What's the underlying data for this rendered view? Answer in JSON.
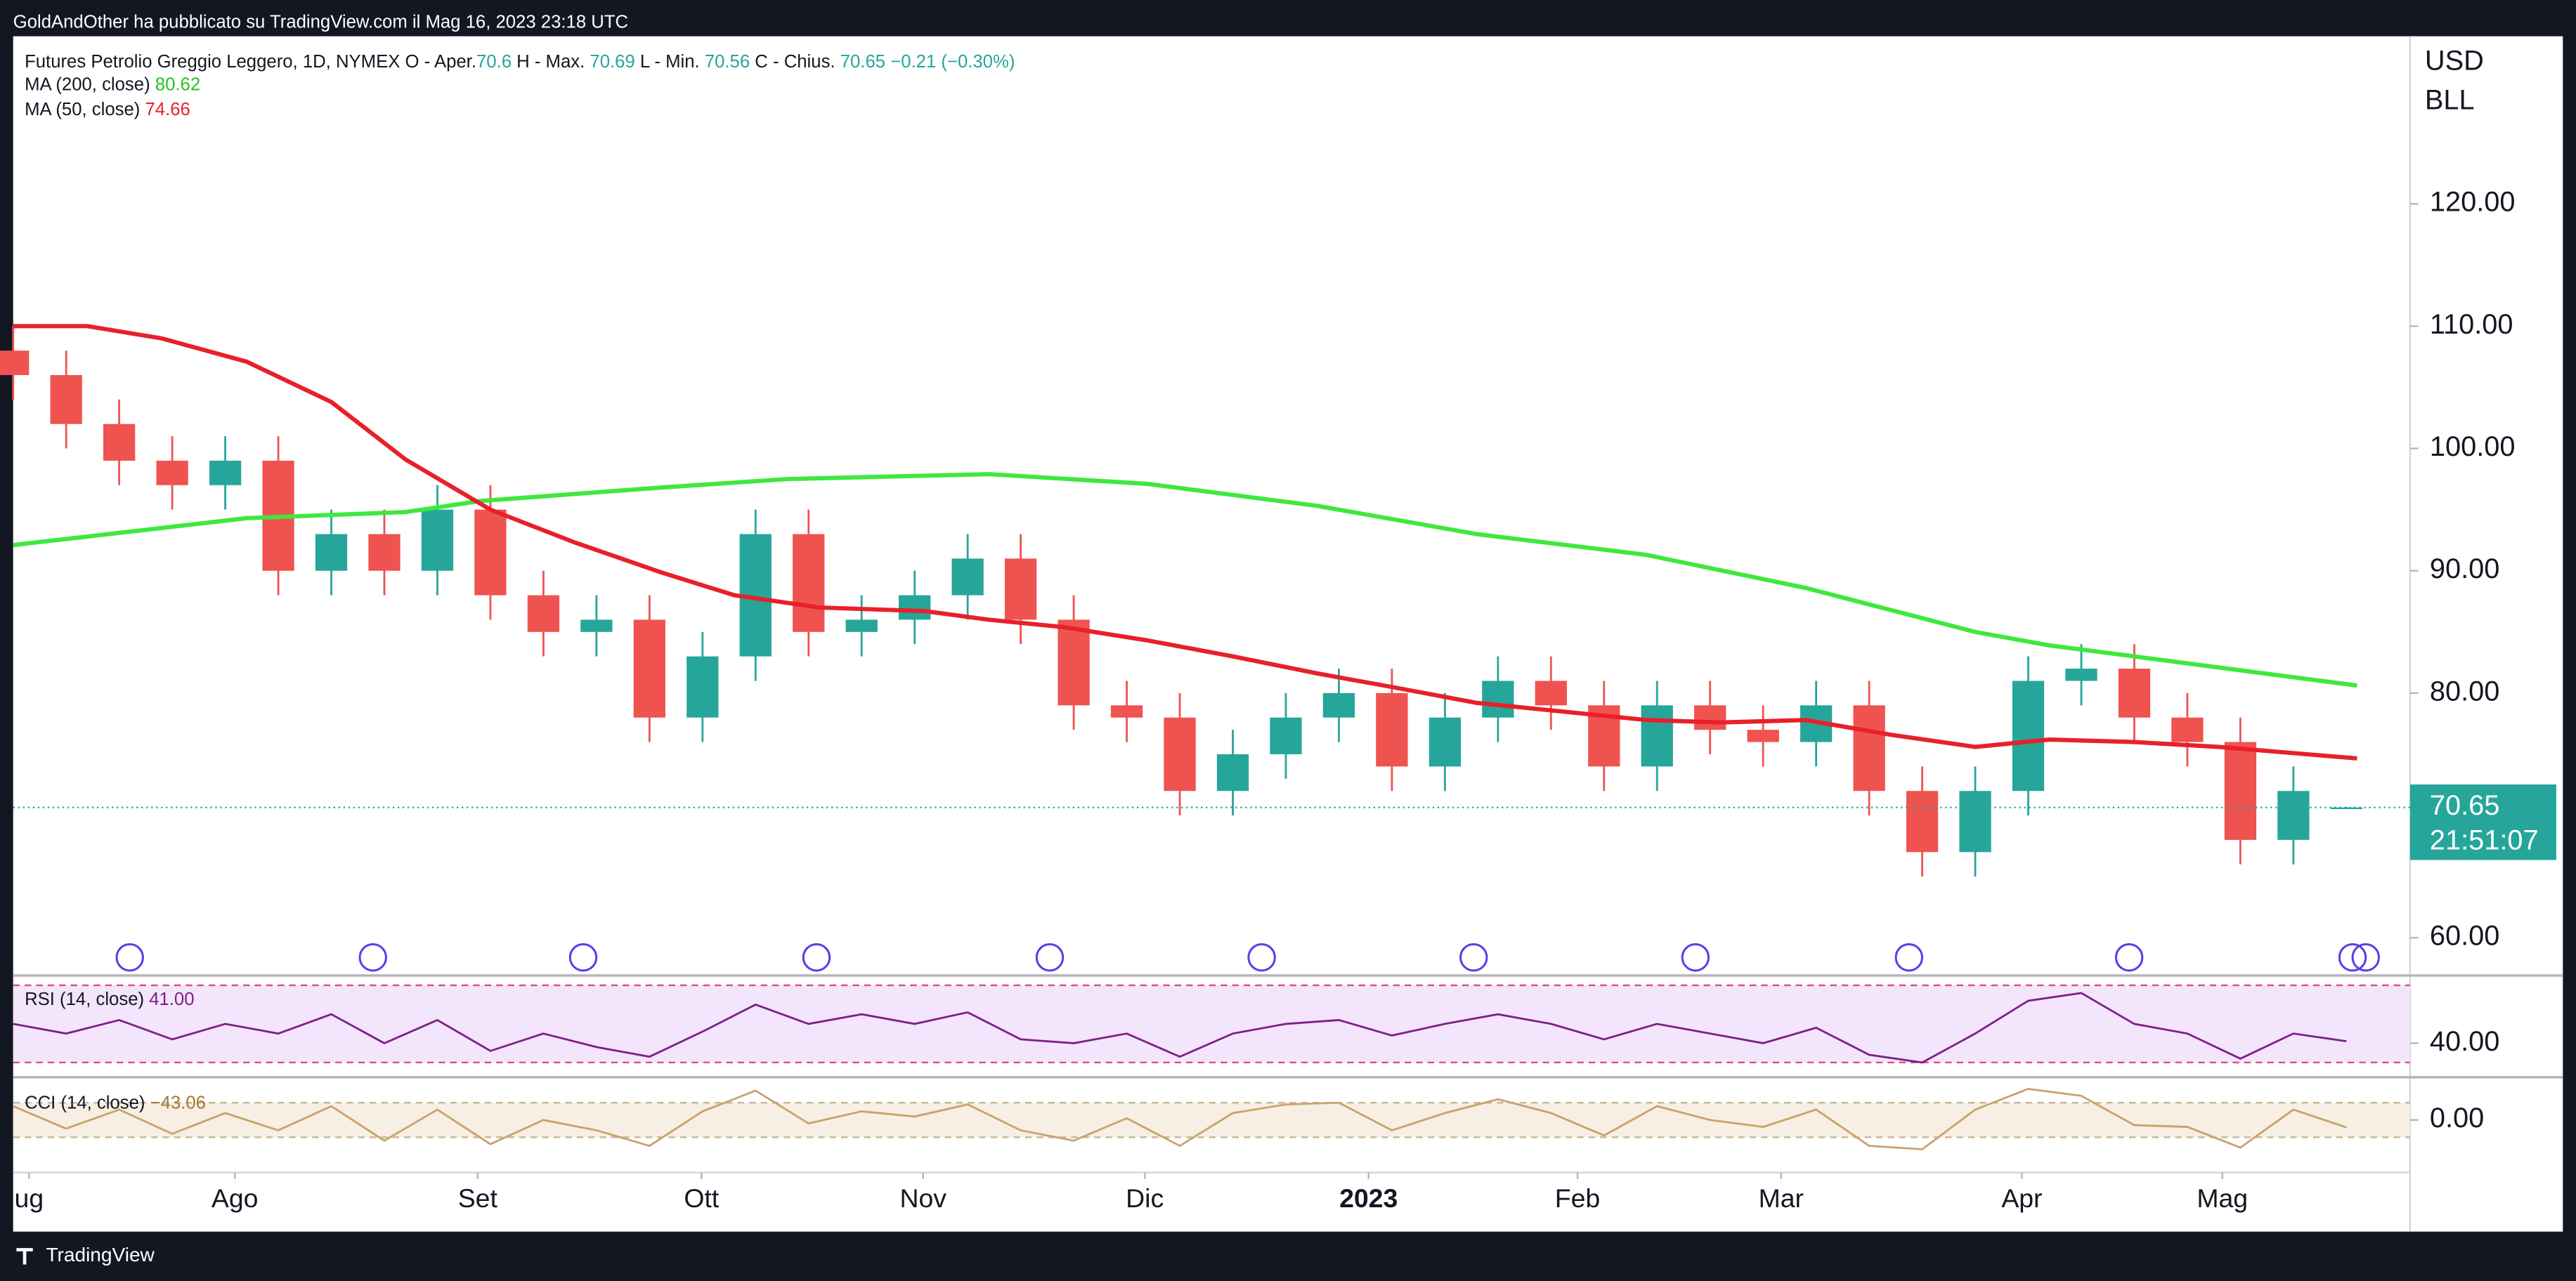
{
  "header": {
    "published": "GoldAndOther ha pubblicato su TradingView.com il Mag 16, 2023 23:18 UTC",
    "symbol": "Futures Petrolio Greggio Leggero, 1D, NYMEX",
    "open_label": "O - Aper.",
    "high_label": "H - Max.",
    "low_label": "L - Min.",
    "close_label": "C - Chius.",
    "change": "−0.21 (−0.30%)",
    "currency": "USD",
    "unit": "BLL",
    "countdown": "21:51:07",
    "brand": "TradingView"
  },
  "chart_data": [
    {
      "type": "candlestick",
      "x": [
        0,
        5,
        10,
        15,
        20,
        25,
        30,
        35,
        40,
        45,
        50,
        55,
        60,
        65,
        70,
        75,
        80,
        85,
        90,
        95,
        100,
        105,
        110,
        115,
        120,
        125,
        130,
        135,
        140,
        145,
        150,
        155,
        160,
        165,
        170,
        175,
        180,
        185,
        190,
        195,
        200,
        205,
        210,
        215,
        220
      ],
      "open": [
        108,
        106,
        102,
        99,
        97,
        99,
        90,
        93,
        90,
        95,
        88,
        85,
        86,
        78,
        83,
        93,
        85,
        86,
        88,
        91,
        86,
        79,
        78,
        72,
        75,
        78,
        80,
        74,
        78,
        81,
        79,
        74,
        79,
        77,
        76,
        79,
        72,
        67,
        72,
        81,
        82,
        78,
        76,
        68,
        70.6
      ],
      "high": [
        110,
        108,
        104,
        101,
        101,
        101,
        95,
        95,
        97,
        97,
        90,
        88,
        88,
        85,
        95,
        95,
        88,
        90,
        93,
        93,
        88,
        81,
        80,
        77,
        80,
        82,
        82,
        80,
        83,
        83,
        81,
        81,
        81,
        79,
        81,
        81,
        74,
        74,
        83,
        84,
        84,
        80,
        78,
        74,
        70.69
      ],
      "low": [
        104,
        100,
        97,
        95,
        95,
        88,
        88,
        88,
        88,
        86,
        83,
        83,
        76,
        76,
        81,
        83,
        83,
        84,
        86,
        84,
        77,
        76,
        70,
        70,
        73,
        76,
        72,
        72,
        76,
        77,
        72,
        72,
        75,
        74,
        74,
        70,
        65,
        65,
        70,
        79,
        76,
        74,
        66,
        66,
        70.56
      ],
      "close": [
        106,
        102,
        99,
        97,
        99,
        90,
        93,
        90,
        95,
        88,
        85,
        86,
        78,
        83,
        93,
        85,
        86,
        88,
        91,
        86,
        79,
        78,
        72,
        75,
        78,
        80,
        74,
        78,
        81,
        79,
        74,
        79,
        77,
        76,
        79,
        72,
        67,
        72,
        81,
        82,
        78,
        76,
        68,
        72,
        70.65
      ],
      "up_color": "#26a69a",
      "down_color": "#ef5350",
      "series": [
        {
          "name": "MA (200, close)",
          "color": "#3ee83e",
          "x": [
            0,
            22,
            37,
            44,
            61,
            73,
            92,
            107,
            123,
            138,
            154,
            169,
            185,
            192,
            200,
            221
          ],
          "values": [
            92.1,
            94.3,
            94.8,
            95.7,
            96.8,
            97.5,
            97.9,
            97.1,
            95.3,
            93,
            91.3,
            88.6,
            85,
            83.9,
            83,
            80.62
          ]
        },
        {
          "name": "MA (50, close)",
          "color": "#e8202a",
          "x": [
            0,
            7,
            14,
            22,
            30,
            37,
            45,
            53,
            61,
            68,
            76,
            86,
            92,
            99,
            107,
            115,
            123,
            130,
            138,
            146,
            154,
            161,
            169,
            177,
            185,
            192,
            200,
            208,
            221
          ],
          "values": [
            110,
            110,
            109,
            107.1,
            103.8,
            99.1,
            95,
            92.3,
            89.9,
            88,
            87,
            86.7,
            86,
            85.4,
            84.3,
            83,
            81.6,
            80.5,
            79.2,
            78.5,
            77.8,
            77.6,
            77.8,
            76.6,
            75.6,
            76.2,
            76,
            75.6,
            74.66
          ]
        }
      ],
      "xlim": [
        0,
        226
      ],
      "xticks": [
        {
          "value": 1.5,
          "label": "ug"
        },
        {
          "value": 20.9,
          "label": "Ago"
        },
        {
          "value": 43.8,
          "label": "Set"
        },
        {
          "value": 64.9,
          "label": "Ott"
        },
        {
          "value": 85.8,
          "label": "Nov"
        },
        {
          "value": 106.7,
          "label": "Dic"
        },
        {
          "value": 127.8,
          "label": "2023"
        },
        {
          "value": 147.5,
          "label": "Feb"
        },
        {
          "value": 166.7,
          "label": "Mar"
        },
        {
          "value": 189.4,
          "label": "Apr"
        },
        {
          "value": 208.3,
          "label": "Mag"
        }
      ],
      "ylim": [
        57.05,
        133.7
      ],
      "yticks": [
        {
          "value": 60,
          "label": "60.00"
        },
        {
          "value": 80,
          "label": "80.00"
        },
        {
          "value": 90,
          "label": "90.00"
        },
        {
          "value": 100,
          "label": "100.00"
        },
        {
          "value": 110,
          "label": "110.00"
        },
        {
          "value": 120,
          "label": "120.00"
        }
      ]
    },
    {
      "type": "line",
      "name": "RSI (14, close)",
      "color": "#7e1f86",
      "band_color": "#f3e5fb",
      "x": [
        0,
        5,
        10,
        15,
        20,
        25,
        30,
        35,
        40,
        45,
        50,
        55,
        60,
        65,
        70,
        75,
        80,
        85,
        90,
        95,
        100,
        105,
        110,
        115,
        120,
        125,
        130,
        135,
        140,
        145,
        150,
        155,
        160,
        165,
        170,
        175,
        180,
        185,
        190,
        195,
        200,
        205,
        210,
        215,
        220
      ],
      "values": [
        50,
        45,
        52,
        42,
        50,
        45,
        55,
        40,
        52,
        36,
        45,
        38,
        33,
        46,
        60,
        50,
        55,
        50,
        56,
        42,
        40,
        45,
        33,
        45,
        50,
        52,
        44,
        50,
        55,
        50,
        42,
        50,
        45,
        40,
        48,
        34,
        30,
        45,
        62,
        66,
        50,
        45,
        32,
        45,
        41
      ],
      "last_label": "41.00",
      "levels": [
        30,
        70
      ],
      "xlim": [
        0,
        226
      ],
      "ylim": [
        23.2,
        75.1
      ],
      "yticks": [
        {
          "value": 40,
          "label": "40.00"
        }
      ]
    },
    {
      "type": "line",
      "name": "CCI (14, close)",
      "color": "#c9a36a",
      "band_color": "#f7efe3",
      "x": [
        0,
        5,
        10,
        15,
        20,
        25,
        30,
        35,
        40,
        45,
        50,
        55,
        60,
        65,
        70,
        75,
        80,
        85,
        90,
        95,
        100,
        105,
        110,
        115,
        120,
        125,
        130,
        135,
        140,
        145,
        150,
        155,
        160,
        165,
        170,
        175,
        180,
        185,
        190,
        195,
        200,
        205,
        210,
        215,
        220
      ],
      "values": [
        80,
        -50,
        60,
        -80,
        40,
        -60,
        80,
        -120,
        60,
        -140,
        0,
        -60,
        -150,
        50,
        170,
        -20,
        50,
        20,
        90,
        -60,
        -120,
        10,
        -150,
        40,
        90,
        100,
        -60,
        40,
        120,
        40,
        -90,
        80,
        0,
        -40,
        60,
        -150,
        -170,
        60,
        180,
        140,
        -30,
        -40,
        -160,
        60,
        -43.06
      ],
      "last_label": "−43.06",
      "levels": [
        -100,
        100
      ],
      "xlim": [
        0,
        226
      ],
      "ylim": [
        -295,
        238
      ],
      "yticks": [
        {
          "value": 0,
          "label": "0.00"
        }
      ]
    }
  ]
}
